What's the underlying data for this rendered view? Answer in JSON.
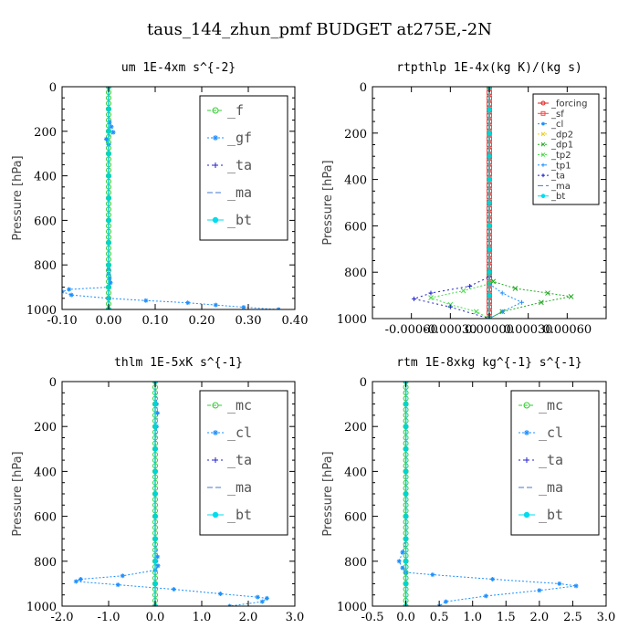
{
  "figure_title": "taus_144_zhun_pmf  BUDGET at275E,-2N",
  "colors": {
    "_f": "#33cc33",
    "_gf": "#1e90ff",
    "_ta": "#2222cc",
    "_ma": "#4477cc",
    "_bt": "#00ddee",
    "_mc": "#33cc33",
    "_cl": "#1e90ff",
    "_forcing": "#dd2222",
    "_sf": "#ff4444",
    "_dp2": "#eecc22",
    "_dp1": "#22aa22",
    "_tp2": "#44dd44",
    "_tp1": "#1e90ff",
    "bt_line": "#00d4d4",
    "frame": "#000000"
  },
  "chart_data": [
    {
      "type": "line",
      "title": "um  1E-4xm s^{-2}",
      "ylabel": "Pressure [hPa]",
      "xlim": [
        -0.1,
        0.4
      ],
      "ylim": [
        1000,
        0
      ],
      "xticks": [
        "-0.10",
        "0.00",
        "0.10",
        "0.20",
        "0.30",
        "0.40"
      ],
      "yticks": [
        "0",
        "200",
        "400",
        "600",
        "800",
        "1000"
      ],
      "legend": {
        "entries": [
          "_f",
          "_gf",
          "_ta",
          "_ma",
          "_bt"
        ],
        "placement": "top-right",
        "style": "large"
      },
      "series": [
        {
          "name": "_f",
          "x": [
            0.0,
            0.0,
            0.0,
            0.0,
            0.0,
            0.0,
            0.0,
            0.0,
            0.0,
            0.0,
            0.0
          ],
          "y": [
            0,
            100,
            200,
            300,
            400,
            500,
            600,
            700,
            800,
            900,
            1000
          ]
        },
        {
          "name": "_gf",
          "x": [
            0.0,
            0.0,
            0.002,
            0.006,
            0.01,
            -0.005,
            0.0,
            0.0,
            0.0,
            0.0,
            0.0,
            0.0,
            0.0,
            0.0,
            0.0,
            0.002,
            0.004,
            0.0,
            -0.085,
            -0.1,
            -0.08,
            0.0,
            0.08,
            0.17,
            0.23,
            0.29,
            0.365
          ],
          "y": [
            0,
            100,
            160,
            180,
            205,
            235,
            260,
            300,
            400,
            500,
            600,
            700,
            800,
            820,
            840,
            860,
            880,
            900,
            910,
            920,
            935,
            950,
            960,
            970,
            980,
            990,
            1000
          ]
        },
        {
          "name": "_ta",
          "x": [
            0.0,
            0.0,
            0.0,
            0.0,
            0.0,
            0.0
          ],
          "y": [
            0,
            200,
            400,
            600,
            800,
            1000
          ]
        },
        {
          "name": "_ma",
          "x": [
            0.0,
            0.0,
            0.0,
            0.0,
            0.0,
            0.0
          ],
          "y": [
            0,
            200,
            400,
            600,
            800,
            1000
          ]
        },
        {
          "name": "_bt",
          "x": [
            0.0,
            0.0,
            0.0,
            0.0,
            0.0,
            0.0,
            0.0,
            0.0,
            0.0,
            0.0,
            0.0
          ],
          "y": [
            0,
            100,
            200,
            300,
            400,
            500,
            600,
            700,
            800,
            900,
            1000
          ]
        }
      ]
    },
    {
      "type": "line",
      "title": "rtpthlp  1E-4x(kg K)/(kg s)",
      "ylabel": "Pressure [hPa]",
      "xlim": [
        -0.0009,
        0.0009
      ],
      "ylim": [
        1000,
        0
      ],
      "xticks": [
        "-0.00060",
        "-0.00030",
        "0.00000",
        "0.00030",
        "0.00060"
      ],
      "yticks": [
        "0",
        "200",
        "400",
        "600",
        "800",
        "1000"
      ],
      "legend": {
        "entries": [
          "_forcing",
          "_sf",
          "_cl",
          "_dp2",
          "_dp1",
          "_tp2",
          "_tp1",
          "_ta",
          "_ma",
          "_bt"
        ],
        "placement": "top-right",
        "style": "small"
      },
      "series": [
        {
          "name": "_forcing",
          "x": [
            0.0,
            0.0,
            0.0,
            0.0,
            0.0,
            0.0,
            0.0,
            0.0,
            0.0,
            0.0,
            0.0
          ],
          "y": [
            0,
            100,
            200,
            300,
            400,
            500,
            600,
            700,
            800,
            900,
            1000
          ]
        },
        {
          "name": "_sf",
          "x": [
            0.0,
            0.0,
            0.0,
            0.0,
            0.0,
            0.0,
            0.0,
            0.0,
            0.0,
            0.0,
            0.0
          ],
          "y": [
            0,
            100,
            200,
            300,
            400,
            500,
            600,
            700,
            800,
            900,
            1000
          ]
        },
        {
          "name": "_cl",
          "x": [
            0.0,
            0.0,
            0.0,
            0.0,
            0.0,
            0.0
          ],
          "y": [
            0,
            200,
            400,
            600,
            800,
            1000
          ]
        },
        {
          "name": "_dp2",
          "x": [
            0.0,
            0.0,
            0.0,
            0.0,
            0.0,
            0.0
          ],
          "y": [
            0,
            200,
            400,
            600,
            800,
            1000
          ]
        },
        {
          "name": "_dp1",
          "x": [
            0.0,
            0.0,
            3e-05,
            0.0002,
            0.00045,
            0.00063,
            0.0004,
            0.0001,
            0.0
          ],
          "y": [
            0,
            800,
            840,
            870,
            890,
            905,
            930,
            970,
            1000
          ]
        },
        {
          "name": "_tp2",
          "x": [
            0.0,
            0.0,
            -0.0002,
            -0.00045,
            -0.0003,
            -0.0001,
            0.0
          ],
          "y": [
            0,
            850,
            880,
            910,
            940,
            970,
            1000
          ]
        },
        {
          "name": "_tp1",
          "x": [
            0.0,
            0.0,
            0.0001,
            0.00025,
            0.0001,
            0.0
          ],
          "y": [
            0,
            850,
            890,
            930,
            970,
            1000
          ]
        },
        {
          "name": "_ta",
          "x": [
            0.0,
            0.0,
            -0.00015,
            -0.00045,
            -0.00058,
            -0.0003,
            0.0
          ],
          "y": [
            0,
            820,
            860,
            890,
            915,
            950,
            1000
          ]
        },
        {
          "name": "_ma",
          "x": [
            0.0,
            0.0,
            0.0,
            0.0,
            0.0,
            0.0
          ],
          "y": [
            0,
            200,
            400,
            600,
            800,
            1000
          ]
        },
        {
          "name": "_bt",
          "x": [
            0.0,
            0.0,
            0.0,
            0.0,
            0.0,
            0.0,
            0.0,
            0.0,
            0.0,
            0.0,
            0.0
          ],
          "y": [
            0,
            100,
            200,
            300,
            400,
            500,
            600,
            700,
            800,
            900,
            1000
          ]
        }
      ]
    },
    {
      "type": "line",
      "title": "thlm  1E-5xK s^{-1}",
      "ylabel": "Pressure [hPa]",
      "xlim": [
        -2.0,
        3.0
      ],
      "ylim": [
        1000,
        0
      ],
      "xticks": [
        "-2.0",
        "-1.0",
        "0.0",
        "1.0",
        "2.0",
        "3.0"
      ],
      "yticks": [
        "0",
        "200",
        "400",
        "600",
        "800",
        "1000"
      ],
      "legend": {
        "entries": [
          "_mc",
          "_cl",
          "_ta",
          "_ma",
          "_bt"
        ],
        "placement": "top-right",
        "style": "large"
      },
      "series": [
        {
          "name": "_mc",
          "x": [
            0.0,
            0.0,
            0.0,
            0.0,
            0.0,
            0.0,
            0.0,
            0.0,
            0.0,
            0.0,
            0.0
          ],
          "y": [
            0,
            100,
            200,
            300,
            400,
            500,
            600,
            700,
            800,
            900,
            1000
          ]
        },
        {
          "name": "_cl",
          "x": [
            0.0,
            0.03,
            0.05,
            0.03,
            0.0,
            0.0,
            0.0,
            0.0,
            0.05,
            0.06,
            0.0,
            -0.7,
            -1.6,
            -1.7,
            -0.8,
            0.4,
            1.4,
            2.2,
            2.4,
            2.3,
            1.6
          ],
          "y": [
            0,
            100,
            140,
            200,
            300,
            400,
            500,
            700,
            780,
            820,
            840,
            865,
            880,
            890,
            905,
            925,
            945,
            960,
            965,
            980,
            1000
          ]
        },
        {
          "name": "_ta",
          "x": [
            0.0,
            0.0,
            0.0,
            0.0,
            0.0,
            0.0
          ],
          "y": [
            0,
            200,
            400,
            600,
            800,
            1000
          ]
        },
        {
          "name": "_ma",
          "x": [
            0.0,
            0.0,
            0.0,
            0.0,
            0.0,
            0.0
          ],
          "y": [
            0,
            200,
            400,
            600,
            800,
            1000
          ]
        },
        {
          "name": "_bt",
          "x": [
            0.0,
            0.0,
            0.0,
            0.0,
            0.0,
            0.0,
            0.0,
            0.0,
            0.0,
            0.0,
            0.0
          ],
          "y": [
            0,
            100,
            200,
            300,
            400,
            500,
            600,
            700,
            800,
            900,
            1000
          ]
        }
      ]
    },
    {
      "type": "line",
      "title": "rtm  1E-8xkg kg^{-1} s^{-1}",
      "ylabel": "Pressure [hPa]",
      "xlim": [
        -0.5,
        3.0
      ],
      "ylim": [
        1000,
        0
      ],
      "xticks": [
        "-0.5",
        "0.0",
        "0.5",
        "1.0",
        "1.5",
        "2.0",
        "2.5",
        "3.0"
      ],
      "yticks": [
        "0",
        "200",
        "400",
        "600",
        "800",
        "1000"
      ],
      "legend": {
        "entries": [
          "_mc",
          "_cl",
          "_ta",
          "_ma",
          "_bt"
        ],
        "placement": "top-right",
        "style": "large"
      },
      "series": [
        {
          "name": "_mc",
          "x": [
            0.0,
            0.0,
            0.0,
            0.0,
            0.0,
            0.0,
            0.0,
            0.0,
            0.0,
            0.0,
            0.0
          ],
          "y": [
            0,
            100,
            200,
            300,
            400,
            500,
            600,
            700,
            800,
            900,
            1000
          ]
        },
        {
          "name": "_cl",
          "x": [
            0.0,
            0.0,
            0.0,
            -0.05,
            -0.1,
            -0.05,
            0.0,
            0.4,
            1.3,
            2.3,
            2.55,
            2.0,
            1.2,
            0.6,
            0.5
          ],
          "y": [
            0,
            400,
            700,
            760,
            800,
            830,
            850,
            860,
            880,
            900,
            910,
            930,
            955,
            980,
            1000
          ]
        },
        {
          "name": "_ta",
          "x": [
            0.0,
            0.0,
            0.0,
            0.0,
            0.0,
            0.0
          ],
          "y": [
            0,
            200,
            400,
            600,
            800,
            1000
          ]
        },
        {
          "name": "_ma",
          "x": [
            0.0,
            0.0,
            0.0,
            0.0,
            0.0,
            0.0
          ],
          "y": [
            0,
            200,
            400,
            600,
            800,
            1000
          ]
        },
        {
          "name": "_bt",
          "x": [
            0.0,
            0.0,
            0.0,
            0.0,
            0.0,
            0.0,
            0.0,
            0.0,
            0.0,
            0.0,
            0.0
          ],
          "y": [
            0,
            100,
            200,
            300,
            400,
            500,
            600,
            700,
            800,
            900,
            1000
          ]
        }
      ]
    }
  ]
}
